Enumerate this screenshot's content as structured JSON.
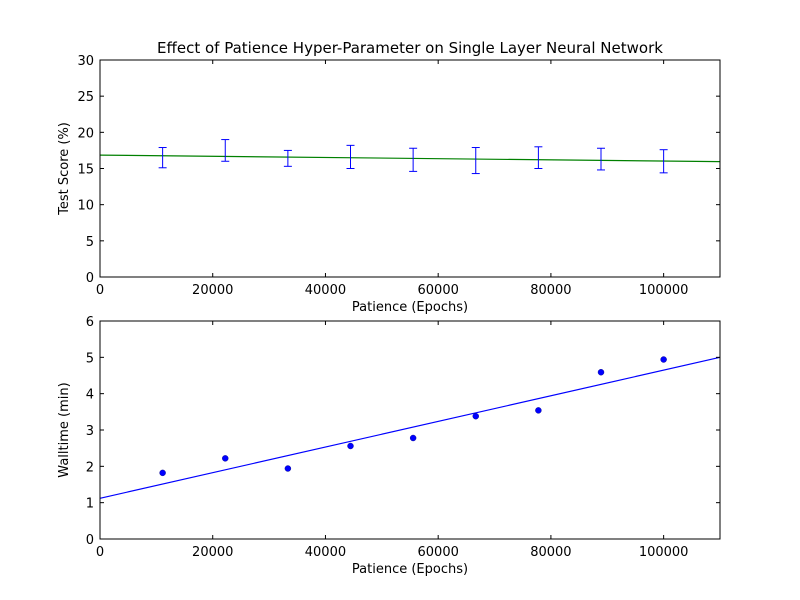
{
  "chart_data": [
    {
      "type": "line",
      "title": "Effect of Patience Hyper-Parameter on Single Layer Neural Network",
      "xlabel": "Patience (Epochs)",
      "ylabel": "Test Score (%)",
      "xlim": [
        0,
        110000
      ],
      "ylim": [
        0,
        30
      ],
      "xticks": [
        0,
        20000,
        40000,
        60000,
        80000,
        100000
      ],
      "yticks": [
        0,
        5,
        10,
        15,
        20,
        25,
        30
      ],
      "grid": false,
      "errorbars": {
        "color": "#0000ff",
        "x": [
          11111,
          22222,
          33333,
          44444,
          55556,
          66667,
          77778,
          88889,
          100000
        ],
        "y": [
          16.5,
          17.5,
          16.4,
          16.6,
          16.2,
          16.1,
          16.5,
          16.3,
          16.0
        ],
        "err": [
          1.4,
          1.5,
          1.1,
          1.6,
          1.6,
          1.8,
          1.5,
          1.5,
          1.6
        ]
      },
      "fit_line": {
        "color": "#008000",
        "x": [
          0,
          110000
        ],
        "y": [
          16.85,
          15.95
        ]
      }
    },
    {
      "type": "scatter",
      "title": "",
      "xlabel": "Patience (Epochs)",
      "ylabel": "Walltime (min)",
      "xlim": [
        0,
        110000
      ],
      "ylim": [
        0,
        6
      ],
      "xticks": [
        0,
        20000,
        40000,
        60000,
        80000,
        100000
      ],
      "yticks": [
        0,
        1,
        2,
        3,
        4,
        5,
        6
      ],
      "grid": false,
      "points": {
        "color": "#0000ff",
        "x": [
          11111,
          22222,
          33333,
          44444,
          55556,
          66667,
          77778,
          88889,
          100000
        ],
        "y": [
          1.82,
          2.22,
          1.94,
          2.56,
          2.78,
          3.38,
          3.54,
          4.59,
          4.94
        ]
      },
      "fit_line": {
        "color": "#0000ff",
        "x": [
          0,
          110000
        ],
        "y": [
          1.12,
          5.0
        ]
      }
    }
  ]
}
